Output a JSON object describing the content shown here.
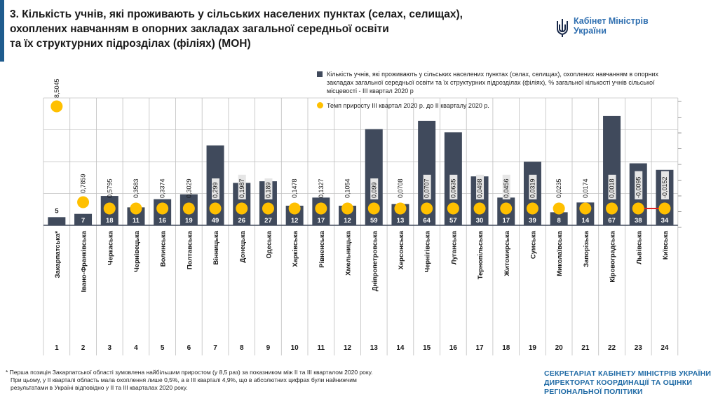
{
  "title": {
    "line1": "3. Кількість учнів, які проживають у сільських населених пунктах (селах, селищах),",
    "line2": "охоплених навчанням в опорних закладах загальної середньої освіти",
    "line3": "та їх структурних підрозділах (філіях) (МОН)"
  },
  "logo": {
    "line1": "Кабінет Міністрів",
    "line2": "України"
  },
  "colors": {
    "bars": "#404a5c",
    "dots": "#ffc000",
    "accent": "#1f5c8e",
    "org_text": "#1f6aa5",
    "negative_line": "#e02020"
  },
  "chart_data": {
    "type": "bar",
    "categories": [
      "Закарпатська*",
      "Івано-Франківська",
      "Черкаська",
      "Чернівецька",
      "Волинська",
      "Полтавська",
      "Вінницька",
      "Донецька",
      "Одеська",
      "Харківська",
      "Рівненська",
      "Хмельницька",
      "Дніпропетровська",
      "Херсонська",
      "Чернігівська",
      "Луганська",
      "Тернопільська",
      "Житомирська",
      "Сумська",
      "Миколаївська",
      "Запорізька",
      "Кіровоградська",
      "Львівська",
      "Київська"
    ],
    "ranks": [
      "1",
      "2",
      "3",
      "4",
      "5",
      "6",
      "7",
      "8",
      "9",
      "10",
      "11",
      "12",
      "13",
      "14",
      "15",
      "16",
      "17",
      "18",
      "19",
      "20",
      "21",
      "22",
      "23",
      "24"
    ],
    "series": [
      {
        "name": "Кількість учнів, які проживають у сільських населених пунктах (селах, селищах), охоплених навчанням в опорних закладах загальної середньої освіти та їх структурних підрозділах (філіях), % загальної кількості учнів сільської місцевості - III квартал 2020 р",
        "values": [
          5,
          7,
          18,
          11,
          16,
          19,
          49,
          26,
          27,
          12,
          17,
          12,
          59,
          13,
          64,
          57,
          30,
          17,
          39,
          8,
          14,
          67,
          38,
          34
        ],
        "labels": [
          "5",
          "7",
          "18",
          "11",
          "16",
          "19",
          "49",
          "26",
          "27",
          "12",
          "17",
          "12",
          "59",
          "13",
          "64",
          "57",
          "30",
          "17",
          "39",
          "8",
          "14",
          "67",
          "38",
          "34"
        ]
      },
      {
        "name": "Темп приросту III квартал 2020 р. до II кварталу 2020 р.",
        "values": [
          8.5045,
          0.7859,
          0.5795,
          0.3583,
          0.3374,
          0.3029,
          0.299,
          0.1987,
          0.189,
          0.1478,
          0.1327,
          0.1054,
          0.099,
          0.0708,
          0.0707,
          0.0635,
          0.0498,
          0.0456,
          0.0319,
          0.0235,
          0.0174,
          0.0018,
          -0.0095,
          -0.0152
        ],
        "labels": [
          "8,5045",
          "0,7859",
          "0,5795",
          "0,3583",
          "0,3374",
          "0,3029",
          "0,299",
          "0,1987",
          "0,189",
          "0,1478",
          "0,1327",
          "0,1054",
          "0,099",
          "0,0708",
          "0,0707",
          "0,0635",
          "0,0498",
          "0,0456",
          "0,0319",
          "0,0235",
          "0,0174",
          "0,0018",
          "-0,0095",
          "-0,0152"
        ]
      }
    ],
    "grid": true,
    "legend_position": "top-right"
  },
  "legend": {
    "bars": "Кількість учнів, які проживають у сільських населених пунктах (селах, селищах), охоплених навчанням в опорних закладах загальної середньої освіти та їх структурних підрозділах (філіях), % загальної кількості учнів сільської місцевості - III квартал 2020 р",
    "dots": "Темп приросту III квартал 2020 р. до II кварталу 2020 р."
  },
  "footnote": {
    "line1": "* Перша позиція Закарпатської області зумовлена найбільшим приростом (у 8,5 раз) за показником між II та III кварталом 2020 року.",
    "line2": "При цьому, у II кварталі область мала охоплення лише 0,5%, а в III кварталі 4,9%, що в абсолютних цифрах були найнижчим",
    "line3": "результатами в Україні відповідно у II та III кварталах 2020 року."
  },
  "org": {
    "line1": "СЕКРЕТАРІАТ КАБІНЕТУ МІНІСТРІВ УКРАЇНИ",
    "line2": "ДИРЕКТОРАТ КООРДИНАЦІЇ ТА ОЦІНКИ",
    "line3": "РЕГІОНАЛЬНОЇ ПОЛІТИКИ"
  }
}
